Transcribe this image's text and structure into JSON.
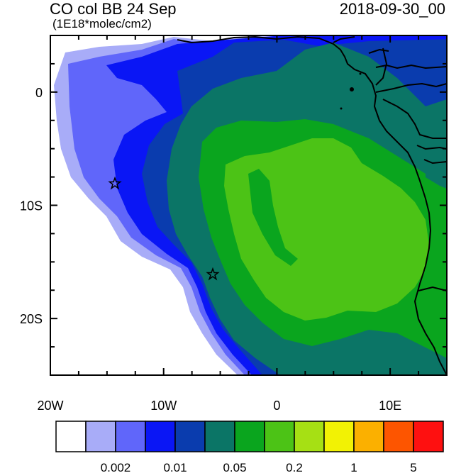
{
  "title": {
    "left": "CO col BB 24 Sep",
    "units": "(1E18*molec/cm2)",
    "right": "2018-09-30_00"
  },
  "axes": {
    "x_ticks": [
      {
        "lon": -20,
        "label": "20W"
      },
      {
        "lon": -10,
        "label": "10W"
      },
      {
        "lon": 0,
        "label": "0"
      },
      {
        "lon": 10,
        "label": "10E"
      }
    ],
    "y_ticks": [
      {
        "lat": 0,
        "label": "0"
      },
      {
        "lat": -10,
        "label": "10S"
      },
      {
        "lat": -20,
        "label": "20S"
      }
    ],
    "lon_range": [
      -20,
      15
    ],
    "lat_range": [
      -25,
      5
    ]
  },
  "colorbar": {
    "colors": [
      "#ffffff",
      "#a8acf8",
      "#6066fa",
      "#0a16f5",
      "#0a3cae",
      "#0b7566",
      "#0aa51e",
      "#4cc316",
      "#a6e014",
      "#f2f204",
      "#fbb000",
      "#fd5500",
      "#fe1010"
    ],
    "labels": [
      {
        "after_index": 2,
        "text": "0.002"
      },
      {
        "after_index": 4,
        "text": "0.01"
      },
      {
        "after_index": 6,
        "text": "0.05"
      },
      {
        "after_index": 8,
        "text": "0.2"
      },
      {
        "after_index": 10,
        "text": "1"
      },
      {
        "after_index": 12,
        "text": "5"
      }
    ]
  },
  "markers": [
    {
      "type": "star",
      "lon": -14.3,
      "lat": -8.0
    },
    {
      "type": "star",
      "lon": -5.7,
      "lat": -16.0
    },
    {
      "type": "dot",
      "lon": 6.5,
      "lat": 0.3
    }
  ]
}
